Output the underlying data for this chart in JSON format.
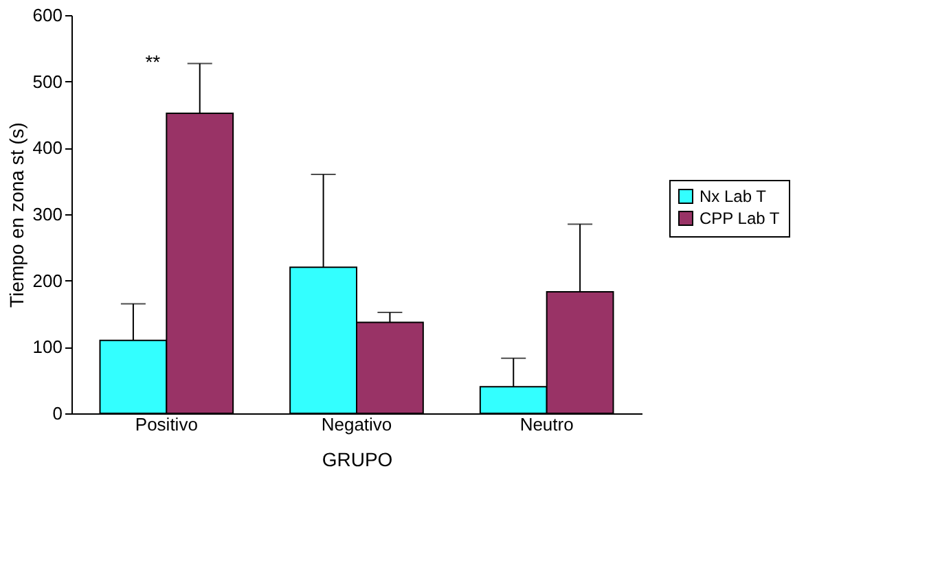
{
  "chart_data": {
    "type": "bar",
    "xlabel": "GRUPO",
    "ylabel": "Tiempo en zona st (s)",
    "categories": [
      "Positivo",
      "Negativo",
      "Neutro"
    ],
    "series": [
      {
        "name": "Nx Lab T",
        "color": "#33ffff",
        "values": [
          110,
          220,
          40
        ],
        "errors": [
          [
            110,
            165
          ],
          [
            220,
            360
          ],
          [
            40,
            83
          ]
        ]
      },
      {
        "name": "CPP Lab T",
        "color": "#993366",
        "values": [
          452,
          137,
          183
        ],
        "errors": [
          [
            452,
            527
          ],
          [
            137,
            152
          ],
          [
            183,
            285
          ]
        ]
      }
    ],
    "ylim": [
      0,
      600
    ],
    "yticks": [
      0,
      100,
      200,
      300,
      400,
      500,
      600
    ],
    "grid": false,
    "legend": "right",
    "annotations": [
      "**"
    ]
  }
}
